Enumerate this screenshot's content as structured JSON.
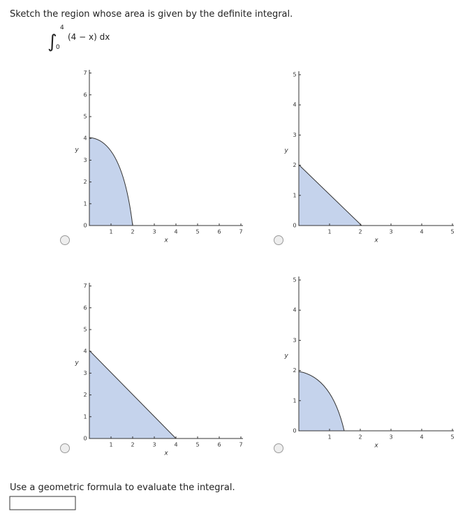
{
  "question": {
    "prompt": "Sketch the region whose area is given by the definite integral.",
    "integral": {
      "upper": "4",
      "lower": "0",
      "integrand": "(4 − x) dx"
    }
  },
  "options": [
    {
      "x_label": "x",
      "y_label": "y",
      "xticks": [
        1,
        2,
        3,
        4,
        5,
        6,
        7
      ],
      "yticks": [
        0,
        1,
        2,
        3,
        4,
        5,
        6,
        7
      ]
    },
    {
      "x_label": "x",
      "y_label": "y",
      "xticks": [
        1,
        2,
        3,
        4,
        5
      ],
      "yticks": [
        0,
        1,
        2,
        3,
        4,
        5
      ]
    },
    {
      "x_label": "x",
      "y_label": "y",
      "xticks": [
        1,
        2,
        3,
        4,
        5,
        6,
        7
      ],
      "yticks": [
        0,
        1,
        2,
        3,
        4,
        5,
        6,
        7
      ]
    },
    {
      "x_label": "x",
      "y_label": "y",
      "xticks": [
        1,
        2,
        3,
        4,
        5
      ],
      "yticks": [
        0,
        1,
        2,
        3,
        4,
        5
      ]
    }
  ],
  "followup": {
    "prompt": "Use a geometric formula to evaluate the integral."
  }
}
